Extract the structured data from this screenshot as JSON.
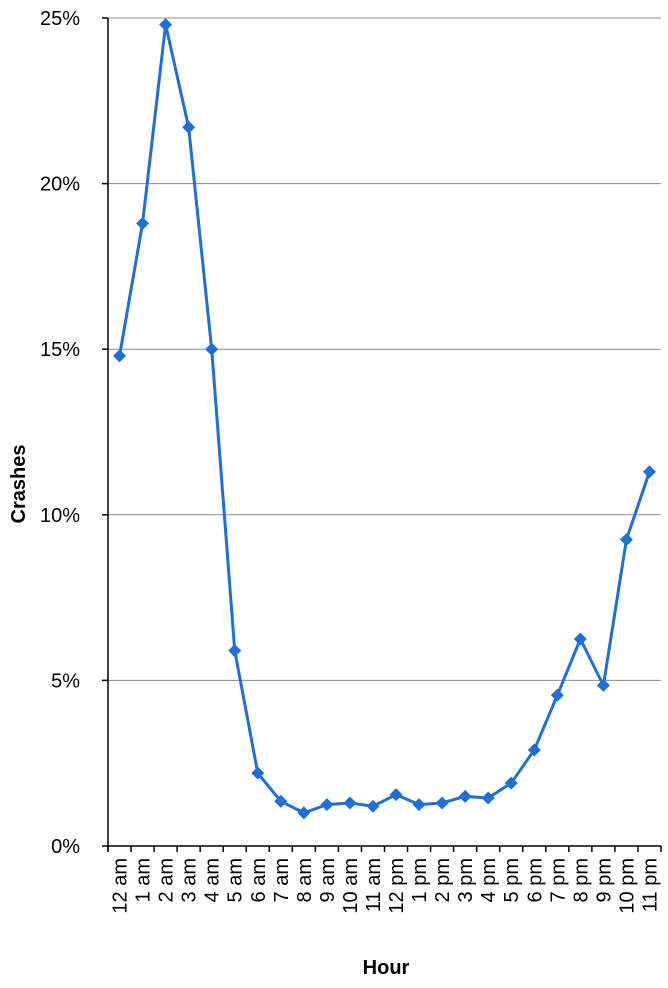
{
  "chart_data": {
    "type": "line",
    "title": "",
    "xlabel": "Hour",
    "ylabel": "Crashes",
    "categories": [
      "12 am",
      "1 am",
      "2 am",
      "3 am",
      "4 am",
      "5 am",
      "6 am",
      "7 am",
      "8 am",
      "9 am",
      "10 am",
      "11 am",
      "12 pm",
      "1 pm",
      "2 pm",
      "3 pm",
      "4 pm",
      "5 pm",
      "6 pm",
      "7 pm",
      "8 pm",
      "9 pm",
      "10 pm",
      "11 pm"
    ],
    "series": [
      {
        "values": [
          14.8,
          18.8,
          24.8,
          21.7,
          15.0,
          5.9,
          2.2,
          1.35,
          1.0,
          1.25,
          1.3,
          1.2,
          1.55,
          1.25,
          1.3,
          1.5,
          1.45,
          1.9,
          2.9,
          4.55,
          6.25,
          4.85,
          9.25,
          11.3
        ],
        "color": "#1F6FD6"
      }
    ],
    "ylim": [
      0,
      25
    ],
    "yticks": [
      0,
      5,
      10,
      15,
      20,
      25
    ],
    "ytick_labels": [
      "0%",
      "5%",
      "10%",
      "15%",
      "20%",
      "25%"
    ],
    "grid": true,
    "legend": "none",
    "marker": "diamond"
  }
}
